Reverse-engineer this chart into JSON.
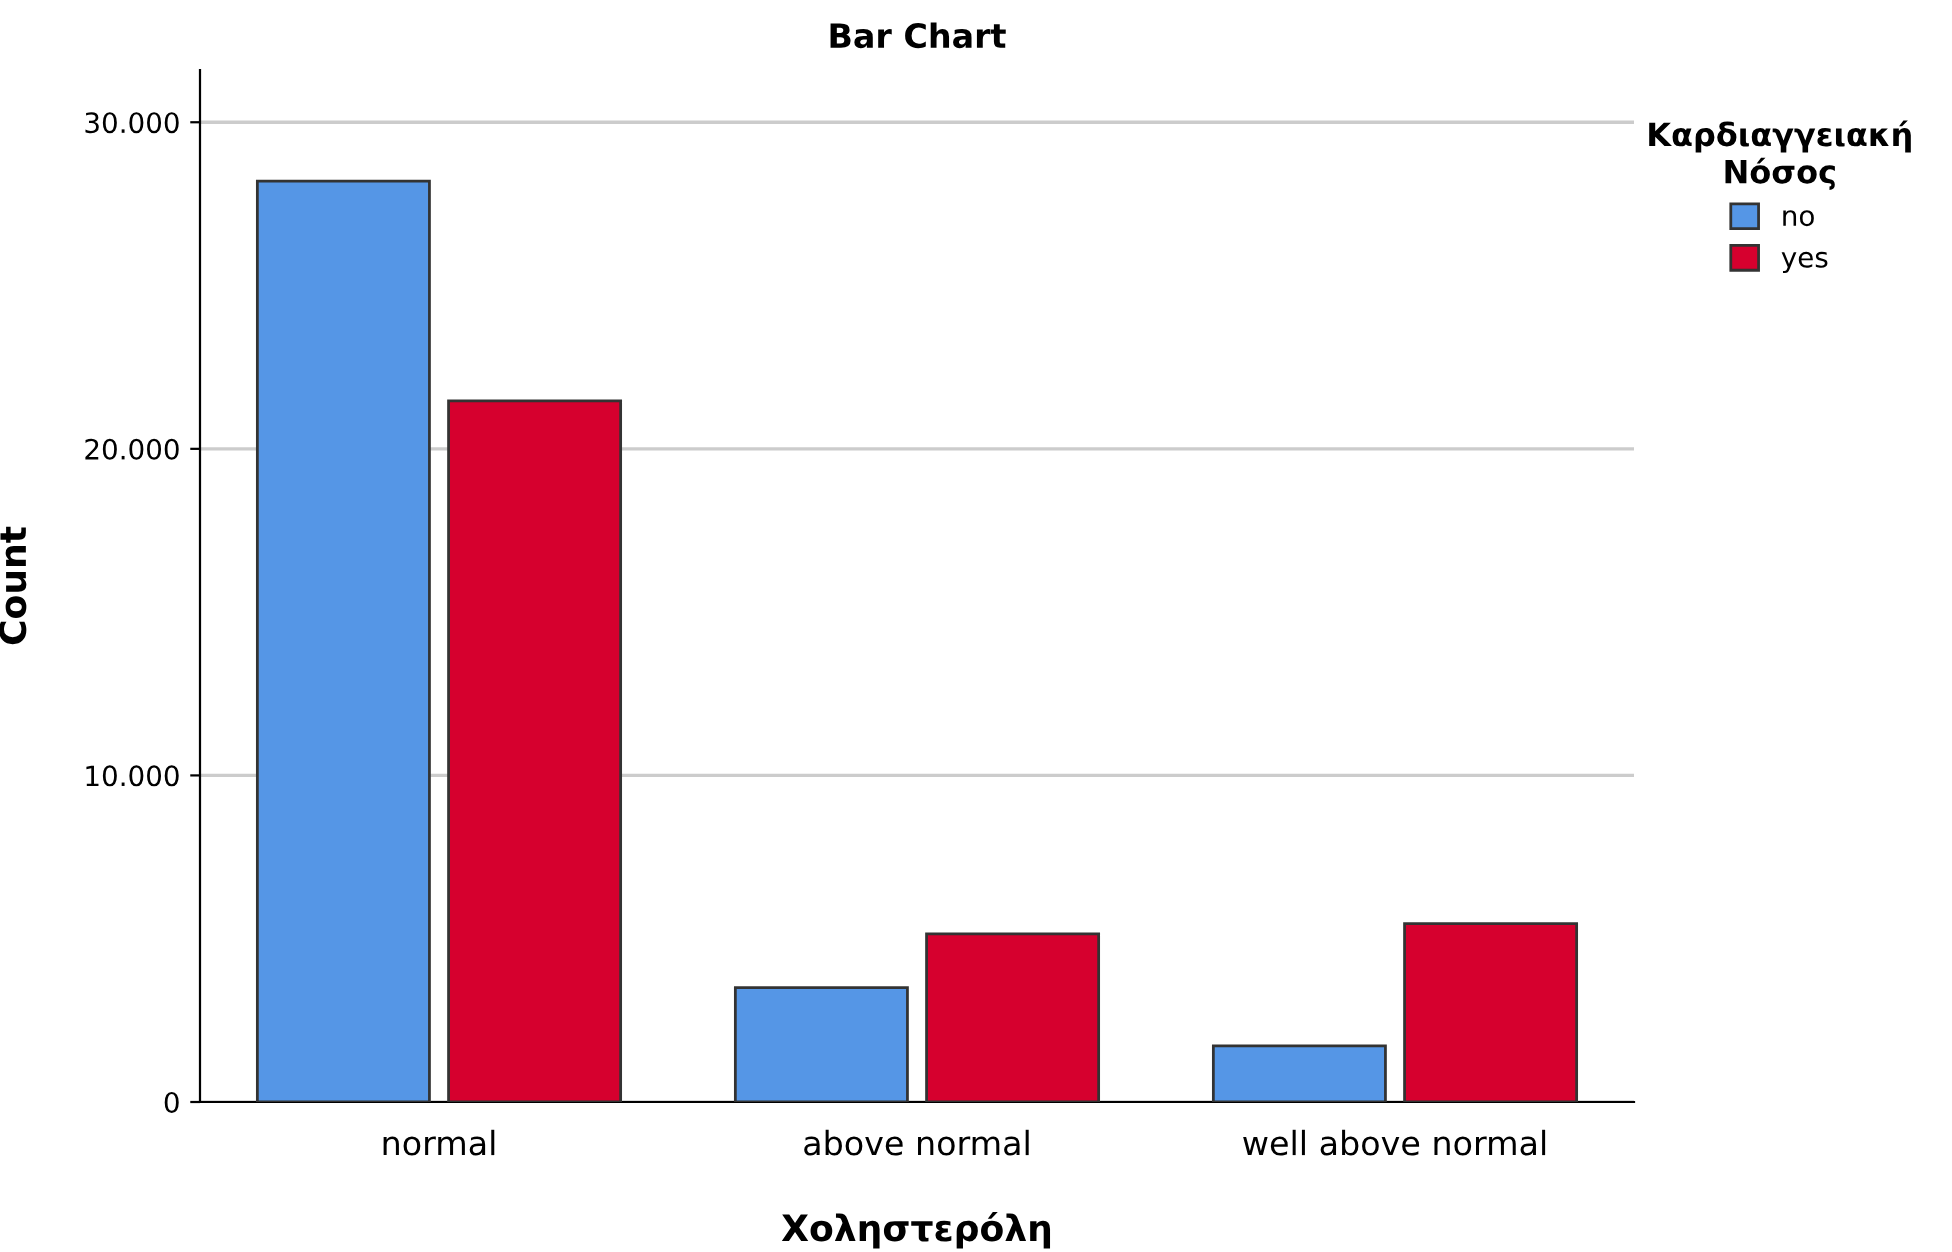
{
  "chart_data": {
    "type": "bar",
    "title": "Bar Chart",
    "xlabel": "Χοληστερόλη",
    "ylabel": "Count",
    "legend_title": "Καρδιαγγειακή\nΝόσος",
    "categories": [
      "normal",
      "above normal",
      "well above normal"
    ],
    "series": [
      {
        "name": "no",
        "color": "#5596e6",
        "values": [
          28200,
          3500,
          1720
        ]
      },
      {
        "name": "yes",
        "color": "#d6002e",
        "values": [
          21470,
          5150,
          5460
        ]
      }
    ],
    "ylim": [
      0,
      31600
    ],
    "yticks": [
      0,
      {
        "value": 10000,
        "label": "10.000"
      },
      {
        "value": 20000,
        "label": "20.000"
      },
      {
        "value": 30000,
        "label": "30.000"
      }
    ],
    "grid": "y",
    "legend": "top right"
  }
}
